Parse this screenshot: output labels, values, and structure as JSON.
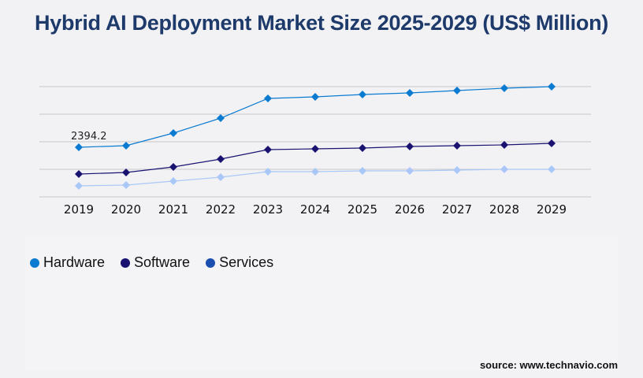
{
  "title": "Hybrid AI Deployment Market Size 2025-2029 (US$ Million)",
  "source": "source: www.technavio.com",
  "chart_data": {
    "type": "line",
    "title": "Hybrid AI Deployment Market Size 2025-2029 (US$ Million)",
    "x": [
      "2019",
      "2020",
      "2021",
      "2022",
      "2023",
      "2024",
      "2025",
      "2026",
      "2027",
      "2028",
      "2029"
    ],
    "ylim": [
      0,
      5320
    ],
    "grid": true,
    "legend_placement": "bottom-left",
    "series": [
      {
        "name": "Hardware",
        "color": "#0a7bd0",
        "dot_color": "#0a7bd0",
        "values": [
          2394.2,
          2470,
          3078,
          3800,
          4750,
          4826,
          4940,
          5016,
          5130,
          5244,
          5320
        ]
      },
      {
        "name": "Software",
        "color": "#1a1270",
        "dot_color": "#1a1270",
        "values": [
          1102,
          1178,
          1444,
          1824,
          2280,
          2318,
          2356,
          2432,
          2470,
          2508,
          2584
        ]
      },
      {
        "name": "Services",
        "color": "#a9c8f7",
        "dot_color": "#1a4fb0",
        "values": [
          532,
          570,
          760,
          950,
          1216,
          1216,
          1254,
          1254,
          1292,
          1330,
          1330
        ]
      }
    ],
    "annotations": [
      {
        "series": "Hardware",
        "x": "2019",
        "label": "2394.2"
      }
    ]
  }
}
